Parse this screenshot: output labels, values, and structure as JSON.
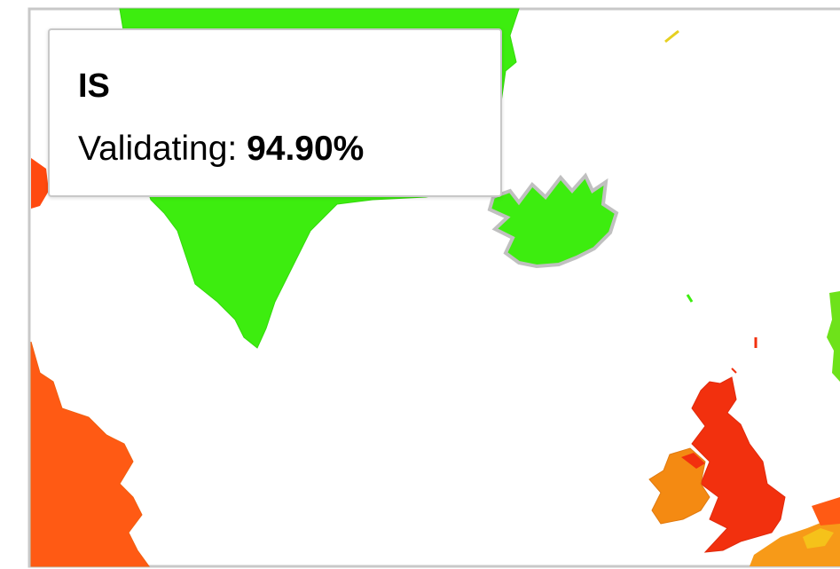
{
  "tooltip": {
    "code": "IS",
    "label": "Validating:",
    "value": "94.90%"
  }
}
